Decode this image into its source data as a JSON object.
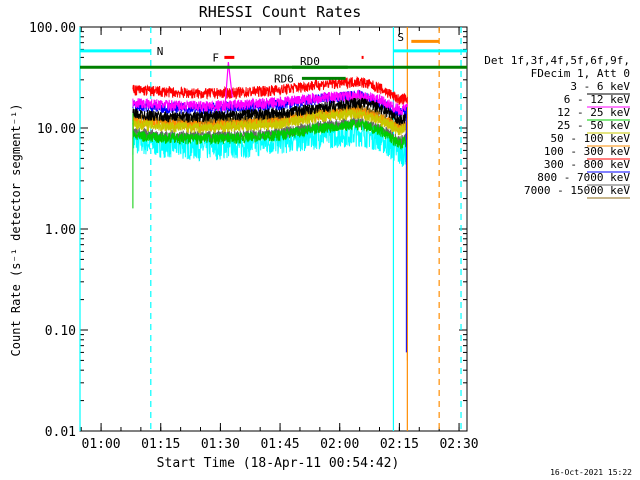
{
  "chart_data": {
    "type": "line",
    "title": "RHESSI Count Rates",
    "xlabel": "Start Time (18-Apr-11 00:54:42)",
    "ylabel": "Count Rate (s⁻¹ detector segment⁻¹)",
    "y_scale": "log",
    "ylim": [
      0.01,
      100
    ],
    "xlim": [
      "00:54:42",
      "02:32:00"
    ],
    "yticks": [
      "0.01",
      "0.10",
      "1.00",
      "10.00",
      "100.00"
    ],
    "xticks": [
      "01:00",
      "01:15",
      "01:30",
      "01:45",
      "02:00",
      "02:15",
      "02:30"
    ],
    "legend_header": [
      "Det 1f,3f,4f,5f,6f,9f,",
      "FDecim 1, Att 0"
    ],
    "grid": false,
    "legend_placement": "right",
    "series": [
      {
        "name": "3 - 6 keV",
        "color": "#000000",
        "x": [
          "01:08",
          "01:15",
          "01:25",
          "01:35",
          "01:45",
          "01:55",
          "02:05",
          "02:10",
          "02:15",
          "02:17"
        ],
        "values": [
          14,
          13,
          13,
          13.5,
          14,
          16,
          18,
          16,
          12,
          13
        ]
      },
      {
        "name": "6 - 12 keV",
        "color": "#ff00ff",
        "x": [
          "01:08",
          "01:15",
          "01:25",
          "01:35",
          "01:45",
          "01:55",
          "02:05",
          "02:10",
          "02:15",
          "02:17"
        ],
        "values": [
          18,
          17,
          16.5,
          17,
          18,
          20,
          21,
          19,
          15,
          16
        ]
      },
      {
        "name": "12 - 25 keV",
        "color": "#00cc00",
        "x": [
          "01:08",
          "01:15",
          "01:25",
          "01:35",
          "01:45",
          "01:55",
          "02:05",
          "02:10",
          "02:15",
          "02:17"
        ],
        "values": [
          8.5,
          8,
          7.8,
          8,
          8.5,
          10,
          11,
          9.5,
          7,
          7.5
        ]
      },
      {
        "name": "25 - 50 keV",
        "color": "#c8c800",
        "x": [
          "01:08",
          "01:15",
          "01:25",
          "01:35",
          "01:45",
          "01:55",
          "02:05",
          "02:10",
          "02:15",
          "02:17"
        ],
        "values": [
          11,
          10.5,
          10,
          10.5,
          11,
          13,
          14,
          12,
          9.5,
          10
        ]
      },
      {
        "name": "50 - 100 keV",
        "color": "#ff8c00",
        "x": [
          "01:08",
          "01:15",
          "01:25",
          "01:35",
          "01:45",
          "01:55",
          "02:05",
          "02:10",
          "02:15",
          "02:17"
        ],
        "values": [
          11.5,
          11,
          10.5,
          11,
          11.5,
          13.5,
          14.5,
          12.5,
          10,
          10.5
        ]
      },
      {
        "name": "100 - 300 keV",
        "color": "#ff0000",
        "x": [
          "01:08",
          "01:15",
          "01:25",
          "01:35",
          "01:45",
          "01:55",
          "02:05",
          "02:10",
          "02:15",
          "02:17"
        ],
        "values": [
          24,
          23,
          22,
          22.5,
          24,
          27,
          29,
          25,
          19,
          20
        ]
      },
      {
        "name": "300 - 800 keV",
        "color": "#0000ff",
        "x": [
          "01:08",
          "01:15",
          "01:25",
          "01:35",
          "01:45",
          "01:55",
          "02:05",
          "02:10",
          "02:15",
          "02:17"
        ],
        "values": [
          17,
          16,
          15.5,
          16,
          17,
          19.5,
          21,
          18,
          14,
          15
        ]
      },
      {
        "name": "800 - 7000 keV",
        "color": "#666666",
        "x": [
          "01:08",
          "01:15",
          "01:25",
          "01:35",
          "01:45",
          "01:55",
          "02:05",
          "02:10",
          "02:15",
          "02:17"
        ],
        "values": [
          9,
          8.5,
          8.3,
          8.5,
          9,
          10.5,
          11.5,
          10,
          7.5,
          8
        ]
      },
      {
        "name": "7000 - 15000 keV",
        "color": "#8b6914",
        "x": [
          "01:08",
          "01:15",
          "01:25",
          "01:35",
          "01:45",
          "01:55",
          "02:05",
          "02:10",
          "02:15",
          "02:17"
        ],
        "values": [
          12.5,
          12,
          11.5,
          12,
          12.5,
          14.5,
          15.5,
          13.5,
          10.5,
          11
        ]
      }
    ],
    "noise_band": {
      "name": "",
      "color": "#00ffff",
      "x": [
        "01:08",
        "01:15",
        "01:25",
        "01:35",
        "01:45",
        "01:55",
        "02:05",
        "02:10",
        "02:15",
        "02:17"
      ],
      "values": [
        7.5,
        7,
        6.5,
        6.8,
        7.5,
        8.5,
        9,
        8,
        5.5,
        6
      ]
    },
    "annotations": {
      "night": {
        "label": "N",
        "color": "#00ffff",
        "start": "00:54:42",
        "end": "01:12:30",
        "y": 58
      },
      "saa": {
        "label": "S",
        "color": "#00ffff",
        "start": "02:13:30",
        "end": "02:32:00",
        "y": 58
      },
      "saa_orange": {
        "label": "",
        "color": "#ff8c00",
        "start": "02:18:00",
        "end": "02:25:00",
        "y": 72
      },
      "flare": {
        "label": "F",
        "color": "#ff0000",
        "start": "01:31:00",
        "end": "01:33:30",
        "y": 50
      },
      "flare2": {
        "label": "",
        "color": "#ff0000",
        "start": "02:05:30",
        "end": "02:06:00",
        "y": 50
      },
      "green_bar": {
        "label": "",
        "color": "#008000",
        "start": "00:54:42",
        "end": "02:32:00",
        "y": 40
      },
      "rd0": {
        "label": "RD0",
        "color": "#008000",
        "start": "01:48:00",
        "end": "02:02:00",
        "y": 40
      },
      "rd6": {
        "label": "RD6",
        "color": "#008000",
        "start": "01:50:30",
        "end": "02:01:30",
        "y": 31
      }
    },
    "vertical_lines": [
      {
        "time": "00:54:42",
        "color": "#00ffff",
        "style": "solid"
      },
      {
        "time": "01:12:30",
        "color": "#00ffff",
        "style": "dashed"
      },
      {
        "time": "02:13:30",
        "color": "#00ffff",
        "style": "solid"
      },
      {
        "time": "02:17:00",
        "color": "#ff8c00",
        "style": "solid"
      },
      {
        "time": "02:25:00",
        "color": "#ff8c00",
        "style": "dashed"
      },
      {
        "time": "02:30:30",
        "color": "#00ffff",
        "style": "dashed"
      }
    ]
  },
  "footer_date": "16-Oct-2021 15:22"
}
